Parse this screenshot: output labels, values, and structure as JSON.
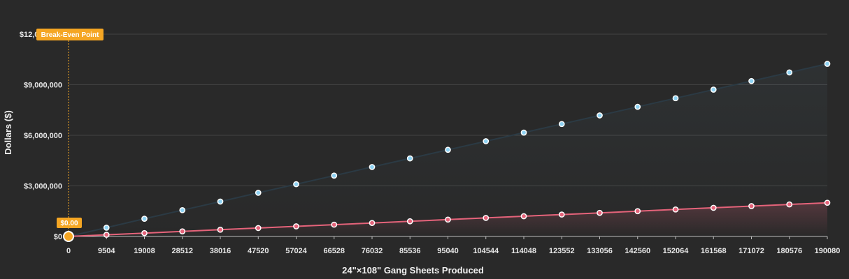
{
  "chart_data": {
    "type": "line",
    "xlabel": "24\"×108\" Gang Sheets Produced",
    "ylabel": "Dollars ($)",
    "x": [
      0,
      9504,
      19008,
      28512,
      38016,
      47520,
      57024,
      66528,
      76032,
      85536,
      95040,
      104544,
      114048,
      123552,
      133056,
      142560,
      152064,
      161568,
      171072,
      180576,
      190080
    ],
    "y_ticks": [
      "$0",
      "$3,000,000",
      "$6,000,000",
      "$9,000,000",
      "$12,000,000"
    ],
    "ylim": [
      0,
      12000000
    ],
    "grid": true,
    "series": [
      {
        "values": [
          0,
          520000,
          1050000,
          1560000,
          2070000,
          2590000,
          3100000,
          3610000,
          4120000,
          4630000,
          5140000,
          5650000,
          6160000,
          6670000,
          7180000,
          7690000,
          8200000,
          8710000,
          9220000,
          9730000,
          10240000
        ],
        "color": "#8fd3f4",
        "line_color": "#2b3a44"
      },
      {
        "values": [
          0,
          100000,
          200000,
          300000,
          400000,
          500000,
          600000,
          700000,
          800000,
          900000,
          1000000,
          1100000,
          1200000,
          1300000,
          1400000,
          1500000,
          1600000,
          1700000,
          1800000,
          1900000,
          2000000
        ],
        "color": "#e5637a",
        "line_color": "#e5637a"
      }
    ],
    "annotations": {
      "break_even_label": "Break-Even Point",
      "break_even_x": 0,
      "break_even_value_label": "$0.00",
      "badge_color": "#f5a623"
    }
  }
}
